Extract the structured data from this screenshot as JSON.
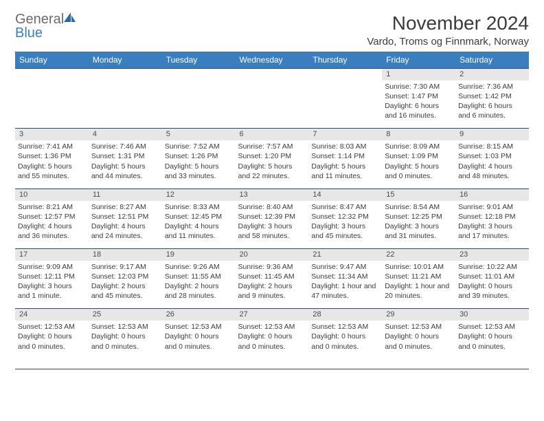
{
  "logo": {
    "text_gray": "General",
    "text_blue": "Blue"
  },
  "title": "November 2024",
  "location": "Vardo, Troms og Finnmark, Norway",
  "header_bg": "#3a7ebf",
  "daynum_bg": "#e7e7e7",
  "rule_color": "#2e4a6b",
  "text_color": "#3b3b3b",
  "weekdays": [
    "Sunday",
    "Monday",
    "Tuesday",
    "Wednesday",
    "Thursday",
    "Friday",
    "Saturday"
  ],
  "weeks": [
    [
      null,
      null,
      null,
      null,
      null,
      {
        "n": "1",
        "sr": "Sunrise: 7:30 AM",
        "ss": "Sunset: 1:47 PM",
        "dl": "Daylight: 6 hours and 16 minutes."
      },
      {
        "n": "2",
        "sr": "Sunrise: 7:36 AM",
        "ss": "Sunset: 1:42 PM",
        "dl": "Daylight: 6 hours and 6 minutes."
      }
    ],
    [
      {
        "n": "3",
        "sr": "Sunrise: 7:41 AM",
        "ss": "Sunset: 1:36 PM",
        "dl": "Daylight: 5 hours and 55 minutes."
      },
      {
        "n": "4",
        "sr": "Sunrise: 7:46 AM",
        "ss": "Sunset: 1:31 PM",
        "dl": "Daylight: 5 hours and 44 minutes."
      },
      {
        "n": "5",
        "sr": "Sunrise: 7:52 AM",
        "ss": "Sunset: 1:26 PM",
        "dl": "Daylight: 5 hours and 33 minutes."
      },
      {
        "n": "6",
        "sr": "Sunrise: 7:57 AM",
        "ss": "Sunset: 1:20 PM",
        "dl": "Daylight: 5 hours and 22 minutes."
      },
      {
        "n": "7",
        "sr": "Sunrise: 8:03 AM",
        "ss": "Sunset: 1:14 PM",
        "dl": "Daylight: 5 hours and 11 minutes."
      },
      {
        "n": "8",
        "sr": "Sunrise: 8:09 AM",
        "ss": "Sunset: 1:09 PM",
        "dl": "Daylight: 5 hours and 0 minutes."
      },
      {
        "n": "9",
        "sr": "Sunrise: 8:15 AM",
        "ss": "Sunset: 1:03 PM",
        "dl": "Daylight: 4 hours and 48 minutes."
      }
    ],
    [
      {
        "n": "10",
        "sr": "Sunrise: 8:21 AM",
        "ss": "Sunset: 12:57 PM",
        "dl": "Daylight: 4 hours and 36 minutes."
      },
      {
        "n": "11",
        "sr": "Sunrise: 8:27 AM",
        "ss": "Sunset: 12:51 PM",
        "dl": "Daylight: 4 hours and 24 minutes."
      },
      {
        "n": "12",
        "sr": "Sunrise: 8:33 AM",
        "ss": "Sunset: 12:45 PM",
        "dl": "Daylight: 4 hours and 11 minutes."
      },
      {
        "n": "13",
        "sr": "Sunrise: 8:40 AM",
        "ss": "Sunset: 12:39 PM",
        "dl": "Daylight: 3 hours and 58 minutes."
      },
      {
        "n": "14",
        "sr": "Sunrise: 8:47 AM",
        "ss": "Sunset: 12:32 PM",
        "dl": "Daylight: 3 hours and 45 minutes."
      },
      {
        "n": "15",
        "sr": "Sunrise: 8:54 AM",
        "ss": "Sunset: 12:25 PM",
        "dl": "Daylight: 3 hours and 31 minutes."
      },
      {
        "n": "16",
        "sr": "Sunrise: 9:01 AM",
        "ss": "Sunset: 12:18 PM",
        "dl": "Daylight: 3 hours and 17 minutes."
      }
    ],
    [
      {
        "n": "17",
        "sr": "Sunrise: 9:09 AM",
        "ss": "Sunset: 12:11 PM",
        "dl": "Daylight: 3 hours and 1 minute."
      },
      {
        "n": "18",
        "sr": "Sunrise: 9:17 AM",
        "ss": "Sunset: 12:03 PM",
        "dl": "Daylight: 2 hours and 45 minutes."
      },
      {
        "n": "19",
        "sr": "Sunrise: 9:26 AM",
        "ss": "Sunset: 11:55 AM",
        "dl": "Daylight: 2 hours and 28 minutes."
      },
      {
        "n": "20",
        "sr": "Sunrise: 9:36 AM",
        "ss": "Sunset: 11:45 AM",
        "dl": "Daylight: 2 hours and 9 minutes."
      },
      {
        "n": "21",
        "sr": "Sunrise: 9:47 AM",
        "ss": "Sunset: 11:34 AM",
        "dl": "Daylight: 1 hour and 47 minutes."
      },
      {
        "n": "22",
        "sr": "Sunrise: 10:01 AM",
        "ss": "Sunset: 11:21 AM",
        "dl": "Daylight: 1 hour and 20 minutes."
      },
      {
        "n": "23",
        "sr": "Sunrise: 10:22 AM",
        "ss": "Sunset: 11:01 AM",
        "dl": "Daylight: 0 hours and 39 minutes."
      }
    ],
    [
      {
        "n": "24",
        "sr": "",
        "ss": "Sunset: 12:53 AM",
        "dl": "Daylight: 0 hours and 0 minutes."
      },
      {
        "n": "25",
        "sr": "",
        "ss": "Sunset: 12:53 AM",
        "dl": "Daylight: 0 hours and 0 minutes."
      },
      {
        "n": "26",
        "sr": "",
        "ss": "Sunset: 12:53 AM",
        "dl": "Daylight: 0 hours and 0 minutes."
      },
      {
        "n": "27",
        "sr": "",
        "ss": "Sunset: 12:53 AM",
        "dl": "Daylight: 0 hours and 0 minutes."
      },
      {
        "n": "28",
        "sr": "",
        "ss": "Sunset: 12:53 AM",
        "dl": "Daylight: 0 hours and 0 minutes."
      },
      {
        "n": "29",
        "sr": "",
        "ss": "Sunset: 12:53 AM",
        "dl": "Daylight: 0 hours and 0 minutes."
      },
      {
        "n": "30",
        "sr": "",
        "ss": "Sunset: 12:53 AM",
        "dl": "Daylight: 0 hours and 0 minutes."
      }
    ]
  ]
}
